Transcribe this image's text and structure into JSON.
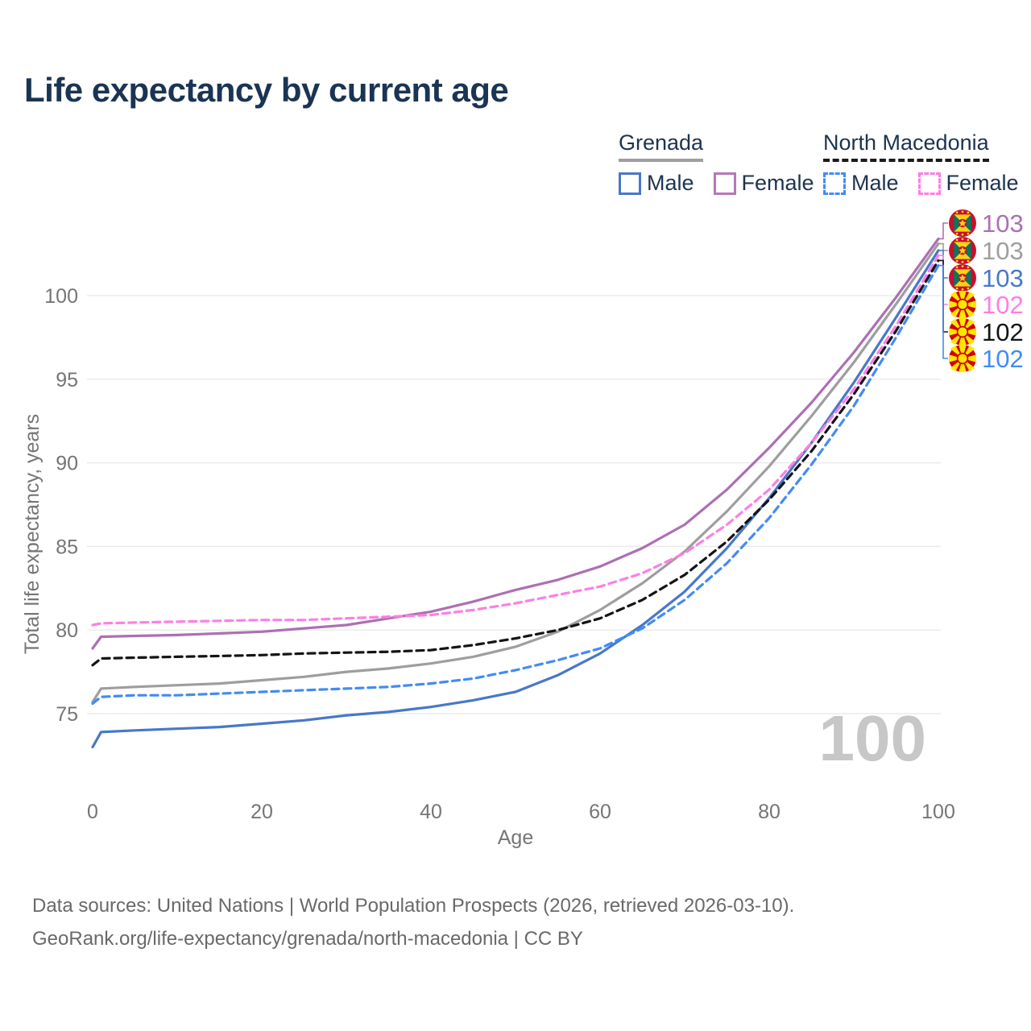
{
  "title": "Life expectancy by current age",
  "legend": {
    "groups": [
      {
        "name": "Grenada",
        "line_style": "solid",
        "underline_color": "#9e9e9e",
        "items": [
          {
            "label": "Male",
            "color": "#4878c8"
          },
          {
            "label": "Female",
            "color": "#b478b8"
          }
        ]
      },
      {
        "name": "North Macedonia",
        "line_style": "dashed",
        "underline_color": "#1a1a1a",
        "items": [
          {
            "label": "Male",
            "color": "#428bf5"
          },
          {
            "label": "Female",
            "color": "#ff7ee3"
          }
        ]
      }
    ]
  },
  "chart_data": {
    "type": "line",
    "title": "Life expectancy by current age",
    "xlabel": "Age",
    "ylabel": "Total life expectancy, years",
    "x_ticks": [
      0,
      20,
      40,
      60,
      80,
      100
    ],
    "y_ticks": [
      75,
      80,
      85,
      90,
      95,
      100
    ],
    "xlim": [
      0,
      100
    ],
    "ylim": [
      72.5,
      103.5
    ],
    "grid": "horizontal",
    "legend_position": "top-right",
    "x": [
      0,
      1,
      5,
      10,
      15,
      20,
      25,
      30,
      35,
      40,
      45,
      50,
      55,
      60,
      65,
      70,
      75,
      80,
      85,
      90,
      95,
      100
    ],
    "series": [
      {
        "name": "Grenada Female",
        "country": "Grenada",
        "sex": "Female",
        "color": "#ad6fb3",
        "dash": "solid",
        "row": 0,
        "end_label": "103",
        "values": [
          78.9,
          79.6,
          79.65,
          79.7,
          79.8,
          79.9,
          80.1,
          80.3,
          80.7,
          81.1,
          81.7,
          82.4,
          83.0,
          83.8,
          84.9,
          86.3,
          88.4,
          90.9,
          93.6,
          96.6,
          99.9,
          103.4
        ]
      },
      {
        "name": "Grenada (both sexes)",
        "country": "Grenada",
        "sex": "All",
        "color": "#9e9e9e",
        "dash": "solid",
        "row": 1,
        "end_label": "103",
        "values": [
          75.7,
          76.5,
          76.6,
          76.7,
          76.8,
          77.0,
          77.2,
          77.5,
          77.7,
          78.0,
          78.4,
          79.0,
          79.9,
          81.2,
          82.8,
          84.7,
          87.1,
          89.8,
          92.8,
          96.0,
          99.5,
          103.1
        ]
      },
      {
        "name": "Grenada Male",
        "country": "Grenada",
        "sex": "Male",
        "color": "#4878c8",
        "dash": "solid",
        "row": 2,
        "end_label": "103",
        "values": [
          73.0,
          73.9,
          74.0,
          74.1,
          74.2,
          74.4,
          74.6,
          74.9,
          75.1,
          75.4,
          75.8,
          76.3,
          77.3,
          78.6,
          80.3,
          82.3,
          84.9,
          87.9,
          91.2,
          94.8,
          98.7,
          102.7
        ]
      },
      {
        "name": "North Macedonia Female",
        "country": "North Macedonia",
        "sex": "Female",
        "color": "#ff7ee3",
        "dash": "dashed",
        "row": 3,
        "end_label": "102",
        "values": [
          80.3,
          80.4,
          80.45,
          80.5,
          80.55,
          80.6,
          80.6,
          80.7,
          80.8,
          80.9,
          81.2,
          81.6,
          82.1,
          82.6,
          83.4,
          84.6,
          86.3,
          88.4,
          91.2,
          94.4,
          98.2,
          102.4
        ]
      },
      {
        "name": "North Macedonia (both sexes)",
        "country": "North Macedonia",
        "sex": "All",
        "color": "#141414",
        "dash": "dashed",
        "row": 4,
        "end_label": "102",
        "values": [
          77.9,
          78.3,
          78.35,
          78.4,
          78.45,
          78.5,
          78.6,
          78.65,
          78.7,
          78.8,
          79.1,
          79.5,
          80.0,
          80.7,
          81.8,
          83.3,
          85.3,
          87.8,
          90.7,
          94.1,
          97.9,
          102.1
        ]
      },
      {
        "name": "North Macedonia Male",
        "country": "North Macedonia",
        "sex": "Male",
        "color": "#428bf5",
        "dash": "dashed",
        "row": 5,
        "end_label": "102",
        "values": [
          75.6,
          76.0,
          76.1,
          76.1,
          76.2,
          76.3,
          76.4,
          76.5,
          76.6,
          76.8,
          77.1,
          77.6,
          78.2,
          78.9,
          80.1,
          81.8,
          84.0,
          86.7,
          89.9,
          93.4,
          97.5,
          101.8
        ]
      }
    ]
  },
  "end_labels": [
    {
      "flag": "grenada",
      "value": "103",
      "color": "#ad6fb3"
    },
    {
      "flag": "grenada",
      "value": "103",
      "color": "#9e9e9e"
    },
    {
      "flag": "grenada",
      "value": "103",
      "color": "#4878c8"
    },
    {
      "flag": "north-macedonia",
      "value": "102",
      "color": "#ff7ee3"
    },
    {
      "flag": "north-macedonia",
      "value": "102",
      "color": "#141414"
    },
    {
      "flag": "north-macedonia",
      "value": "102",
      "color": "#428bf5"
    }
  ],
  "age_counter": "100",
  "colors": {
    "title_text": "#1a3453",
    "axis_text": "#757575",
    "gridline": "#ebebeb",
    "watermark": "#c7c7c7",
    "footer_text": "#696969"
  },
  "footer": {
    "line1": "Data sources: United Nations | World Population Prospects (2026, retrieved 2026-03-10).",
    "line2": "GeoRank.org/life-expectancy/grenada/north-macedonia | CC BY"
  }
}
